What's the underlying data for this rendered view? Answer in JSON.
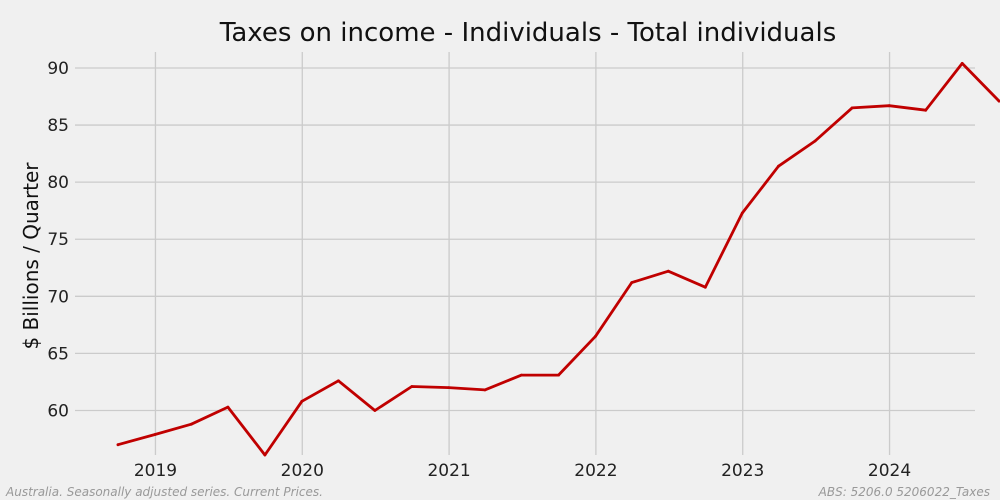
{
  "chart_data": {
    "type": "line",
    "title": "Taxes on income - Individuals - Total individuals",
    "xlabel": "",
    "ylabel": "$ Billions / Quarter",
    "x_tick_labels": [
      "2019",
      "2020",
      "2021",
      "2022",
      "2023",
      "2024"
    ],
    "y_ticks": [
      60,
      65,
      70,
      75,
      80,
      85,
      90
    ],
    "ylim": [
      56.1,
      91.4
    ],
    "xlim": [
      "2018-06-15",
      "2024-08-01"
    ],
    "grid": true,
    "legend": "none",
    "colors": {
      "line": "#c00000",
      "background": "#f0f0f0",
      "grid": "#cbcbcb"
    },
    "series": [
      {
        "x": [
          "2018-09-30",
          "2018-12-31",
          "2019-03-31",
          "2019-06-30",
          "2019-09-30",
          "2019-12-31",
          "2020-03-31",
          "2020-06-30",
          "2020-09-30",
          "2020-12-31",
          "2021-03-31",
          "2021-06-30",
          "2021-09-30",
          "2021-12-31",
          "2022-03-31",
          "2022-06-30",
          "2022-09-30",
          "2022-12-31",
          "2023-03-31",
          "2023-06-30",
          "2023-09-30",
          "2023-12-31",
          "2024-03-31",
          "2024-06-30",
          "2024-09-30"
        ],
        "values": [
          57.0,
          57.9,
          58.8,
          60.3,
          56.1,
          60.8,
          62.6,
          60.0,
          62.1,
          62.0,
          61.8,
          63.1,
          63.1,
          66.5,
          71.2,
          72.2,
          70.8,
          77.3,
          81.4,
          83.6,
          86.5,
          86.7,
          86.3,
          90.4,
          87.1
        ]
      }
    ]
  },
  "footer": {
    "left_note": "Australia. Seasonally adjusted series. Current Prices.",
    "right_note": "ABS: 5206.0 5206022_Taxes"
  }
}
